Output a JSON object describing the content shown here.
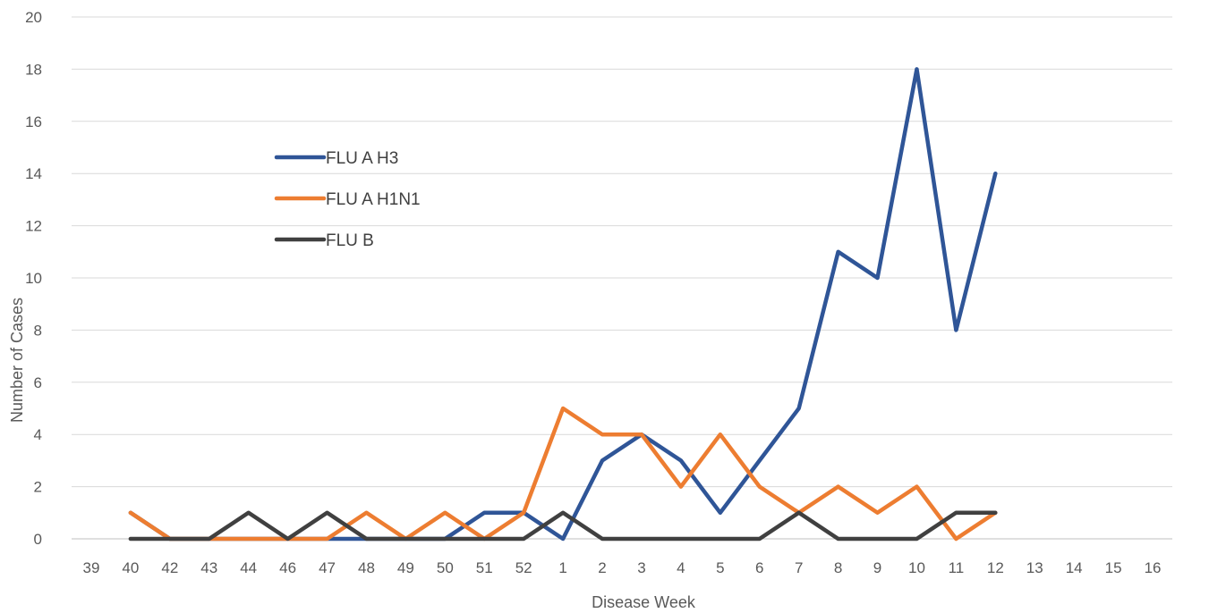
{
  "chart_data": {
    "type": "line",
    "title": "",
    "xlabel": "Disease Week",
    "ylabel": "Number of Cases",
    "ylim": [
      0,
      20
    ],
    "yticks": [
      "0",
      "2",
      "4",
      "6",
      "8",
      "10",
      "12",
      "14",
      "16",
      "18",
      "20"
    ],
    "grid": true,
    "legend_position": "upper-left (inside plot)",
    "categories": [
      "39",
      "40",
      "42",
      "43",
      "44",
      "46",
      "47",
      "48",
      "49",
      "50",
      "51",
      "52",
      "1",
      "2",
      "3",
      "4",
      "5",
      "6",
      "7",
      "8",
      "9",
      "10",
      "11",
      "12",
      "13",
      "14",
      "15",
      "16"
    ],
    "series": [
      {
        "name": "FLU A H3",
        "color": "#2F5597",
        "values": [
          null,
          1,
          0,
          0,
          0,
          0,
          0,
          0,
          0,
          0,
          1,
          1,
          0,
          3,
          4,
          3,
          1,
          3,
          5,
          11,
          10,
          18,
          8,
          14,
          null,
          null,
          null,
          null
        ]
      },
      {
        "name": "FLU A H1N1",
        "color": "#ED7D31",
        "values": [
          null,
          1,
          0,
          0,
          0,
          0,
          0,
          1,
          0,
          1,
          0,
          1,
          5,
          4,
          4,
          2,
          4,
          2,
          1,
          2,
          1,
          2,
          0,
          1,
          null,
          null,
          null,
          null
        ]
      },
      {
        "name": "FLU B",
        "color": "#404040",
        "values": [
          null,
          0,
          0,
          0,
          1,
          0,
          1,
          0,
          0,
          0,
          0,
          0,
          1,
          0,
          0,
          0,
          0,
          0,
          1,
          0,
          0,
          0,
          1,
          1,
          null,
          null,
          null,
          null
        ]
      }
    ]
  }
}
